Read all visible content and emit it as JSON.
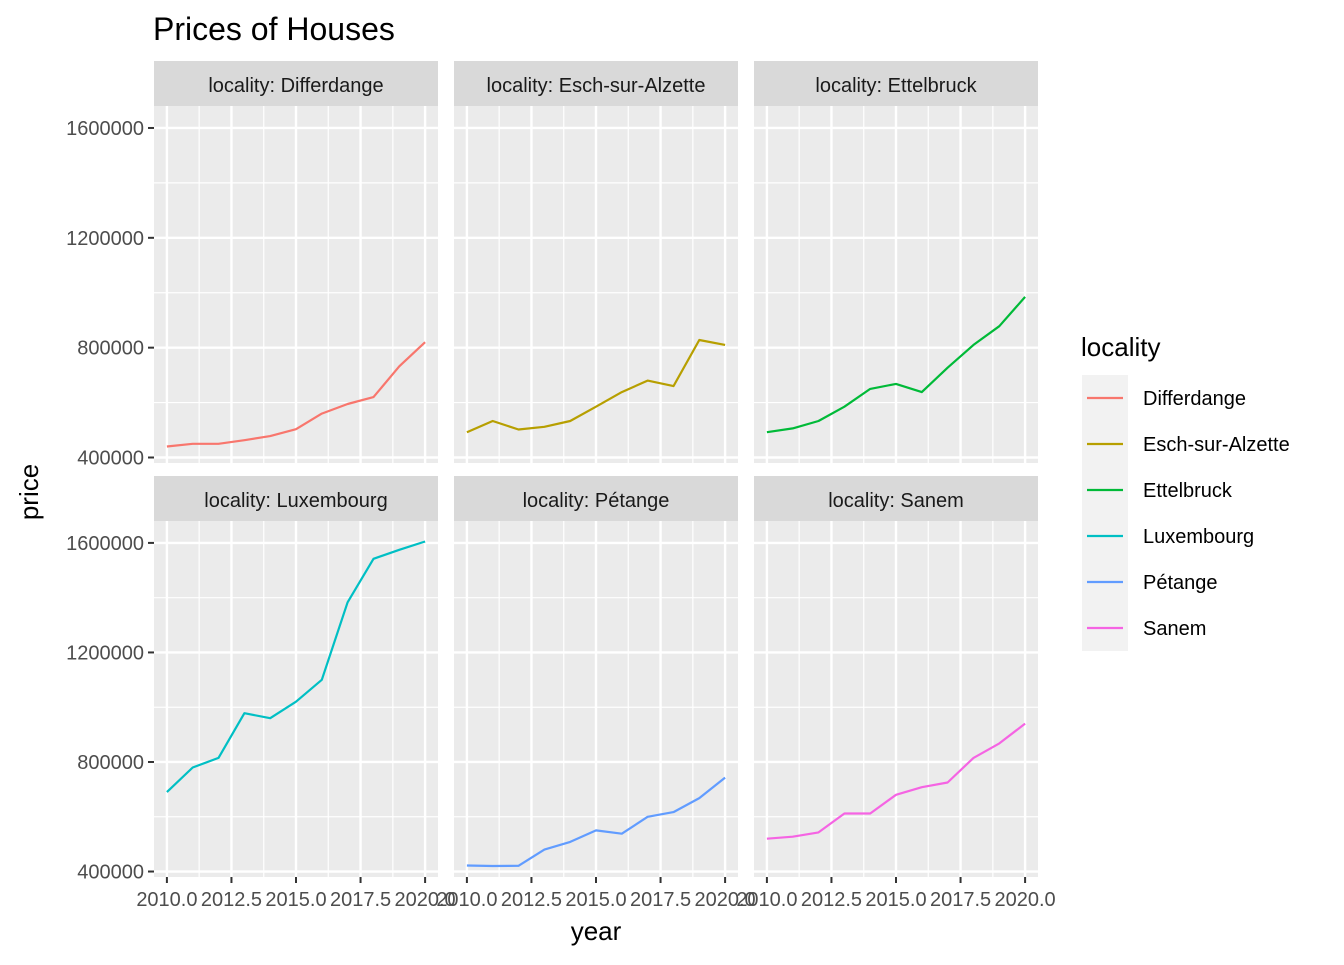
{
  "chart_data": {
    "type": "line",
    "title": "Prices of Houses",
    "xlabel": "year",
    "ylabel": "price",
    "xlim": [
      2010,
      2020
    ],
    "ylim": [
      380000,
      1680000
    ],
    "x_ticks": [
      2010,
      2012.5,
      2015,
      2017.5,
      2020
    ],
    "x_tick_labels": [
      "2010.0",
      "2012.5",
      "2015.0",
      "2017.5",
      "2020.0"
    ],
    "y_ticks": [
      400000,
      800000,
      1200000,
      1600000
    ],
    "y_tick_labels": [
      "400000",
      "800000",
      "1200000",
      "1600000"
    ],
    "grid": true,
    "legend": {
      "title": "locality",
      "position": "right",
      "entries": [
        "Differdange",
        "Esch-sur-Alzette",
        "Ettelbruck",
        "Luxembourg",
        "Pétange",
        "Sanem"
      ]
    },
    "x": [
      2010,
      2011,
      2012,
      2013,
      2014,
      2015,
      2016,
      2017,
      2018,
      2019,
      2020
    ],
    "panels": [
      {
        "strip": "locality: Differdange",
        "name": "Differdange",
        "color": "#F8766D",
        "values": [
          440000,
          450000,
          450000,
          463000,
          478000,
          503000,
          560000,
          595000,
          620000,
          732000,
          820000
        ]
      },
      {
        "strip": "locality: Esch-sur-Alzette",
        "name": "Esch-sur-Alzette",
        "color": "#B79F00",
        "values": [
          492000,
          533000,
          502000,
          512000,
          533000,
          585000,
          638000,
          680000,
          660000,
          828000,
          810000
        ]
      },
      {
        "strip": "locality: Ettelbruck",
        "name": "Ettelbruck",
        "color": "#00BA38",
        "values": [
          492000,
          506000,
          533000,
          585000,
          650000,
          668000,
          638000,
          727000,
          810000,
          878000,
          985000
        ]
      },
      {
        "strip": "locality: Luxembourg",
        "name": "Luxembourg",
        "color": "#00BFC4",
        "values": [
          690000,
          780000,
          815000,
          978000,
          960000,
          1020000,
          1100000,
          1383000,
          1542000,
          1575000,
          1605000
        ]
      },
      {
        "strip": "locality: Pétange",
        "name": "Pétange",
        "color": "#619CFF",
        "values": [
          422000,
          420000,
          421000,
          480000,
          508000,
          550000,
          538000,
          600000,
          617000,
          668000,
          743000
        ]
      },
      {
        "strip": "locality: Sanem",
        "name": "Sanem",
        "color": "#F564E3",
        "values": [
          520000,
          527000,
          543000,
          612000,
          612000,
          680000,
          708000,
          725000,
          815000,
          868000,
          940000
        ]
      }
    ]
  }
}
